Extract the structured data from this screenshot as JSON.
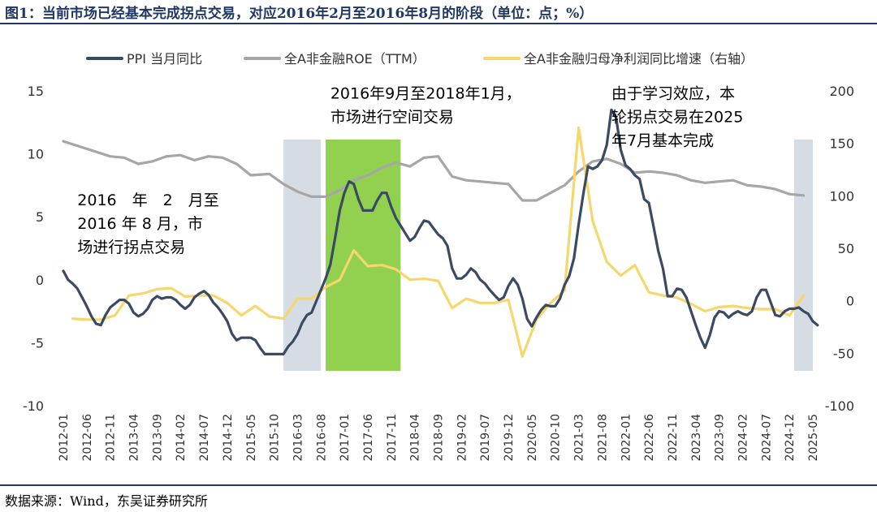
{
  "figure": {
    "title": "图1：当前市场已经基本完成拐点交易，对应2016年2月至2016年8月的阶段（单位：点；%）",
    "source": "数据来源：Wind，东吴证券研究所"
  },
  "chart_data": {
    "type": "line",
    "legend_position": "top",
    "x_dates": [
      "2012-01",
      "2012-06",
      "2012-11",
      "2013-04",
      "2013-09",
      "2014-02",
      "2014-07",
      "2014-12",
      "2015-05",
      "2015-10",
      "2016-03",
      "2016-08",
      "2017-01",
      "2017-06",
      "2017-11",
      "2018-04",
      "2018-09",
      "2019-02",
      "2019-07",
      "2019-12",
      "2020-05",
      "2020-10",
      "2021-03",
      "2021-08",
      "2022-01",
      "2022-06",
      "2022-11",
      "2023-04",
      "2023-09",
      "2024-02",
      "2024-07",
      "2024-12",
      "2025-05"
    ],
    "x_start": "2012-01",
    "x_end": "2025-05",
    "y_left": {
      "min": -10,
      "max": 15,
      "ticks": [
        15,
        10,
        5,
        0,
        -5,
        -10
      ]
    },
    "y_right": {
      "min": -100,
      "max": 200,
      "ticks": [
        200,
        150,
        100,
        50,
        0,
        -50,
        -100
      ]
    },
    "grid": false,
    "colors": {
      "ppi": "#3b4a63",
      "roe": "#a6a6a6",
      "profit": "#f5d76e",
      "green_band": "#92d050",
      "grey_band": "#d6dce4"
    },
    "bands": [
      {
        "from": "2015-12",
        "to": "2016-08",
        "color_key": "grey_band"
      },
      {
        "from": "2016-09",
        "to": "2018-01",
        "color_key": "green_band"
      },
      {
        "from": "2025-01",
        "to": "2025-05",
        "color_key": "grey_band"
      }
    ],
    "annotations": [
      {
        "lines": [
          "2016年9月至2018年1月，",
          "市场进行空间交易"
        ],
        "anchor": "2016-10",
        "y": 14.4
      },
      {
        "lines": [
          "2016　年　2　月至",
          "2016 年 8 月，市",
          "场进行拐点交易"
        ],
        "anchor": "2012-04",
        "y": 5.9
      },
      {
        "lines": [
          "由于学习效应，本",
          "轮拐点交易在2025",
          "年7月基本完成"
        ],
        "anchor": "2021-10",
        "y": 14.4
      }
    ],
    "series": [
      {
        "name": "PPI 当月同比",
        "axis": "left",
        "color_key": "ppi",
        "width": 3.2,
        "points": [
          [
            "2012-01",
            0.7
          ],
          [
            "2012-02",
            0.0
          ],
          [
            "2012-03",
            -0.3
          ],
          [
            "2012-04",
            -0.7
          ],
          [
            "2012-05",
            -1.4
          ],
          [
            "2012-06",
            -2.1
          ],
          [
            "2012-07",
            -2.9
          ],
          [
            "2012-08",
            -3.5
          ],
          [
            "2012-09",
            -3.6
          ],
          [
            "2012-10",
            -2.8
          ],
          [
            "2012-11",
            -2.2
          ],
          [
            "2012-12",
            -1.9
          ],
          [
            "2013-01",
            -1.6
          ],
          [
            "2013-02",
            -1.6
          ],
          [
            "2013-03",
            -1.9
          ],
          [
            "2013-04",
            -2.6
          ],
          [
            "2013-05",
            -2.9
          ],
          [
            "2013-06",
            -2.7
          ],
          [
            "2013-07",
            -2.3
          ],
          [
            "2013-08",
            -1.6
          ],
          [
            "2013-09",
            -1.3
          ],
          [
            "2013-10",
            -1.5
          ],
          [
            "2013-11",
            -1.4
          ],
          [
            "2013-12",
            -1.4
          ],
          [
            "2014-01",
            -1.6
          ],
          [
            "2014-02",
            -2.0
          ],
          [
            "2014-03",
            -2.3
          ],
          [
            "2014-04",
            -2.0
          ],
          [
            "2014-05",
            -1.4
          ],
          [
            "2014-06",
            -1.1
          ],
          [
            "2014-07",
            -0.9
          ],
          [
            "2014-08",
            -1.2
          ],
          [
            "2014-09",
            -1.8
          ],
          [
            "2014-10",
            -2.2
          ],
          [
            "2014-11",
            -2.7
          ],
          [
            "2014-12",
            -3.3
          ],
          [
            "2014-12",
            -3.3
          ],
          [
            "2015-01",
            -4.3
          ],
          [
            "2015-02",
            -4.8
          ],
          [
            "2015-03",
            -4.6
          ],
          [
            "2015-04",
            -4.6
          ],
          [
            "2015-05",
            -4.6
          ],
          [
            "2015-06",
            -4.8
          ],
          [
            "2015-07",
            -5.4
          ],
          [
            "2015-08",
            -5.9
          ],
          [
            "2015-09",
            -5.9
          ],
          [
            "2015-10",
            -5.9
          ],
          [
            "2015-11",
            -5.9
          ],
          [
            "2015-12",
            -5.9
          ],
          [
            "2016-01",
            -5.3
          ],
          [
            "2016-02",
            -4.9
          ],
          [
            "2016-03",
            -4.3
          ],
          [
            "2016-04",
            -3.4
          ],
          [
            "2016-05",
            -2.8
          ],
          [
            "2016-06",
            -2.6
          ],
          [
            "2016-07",
            -1.7
          ],
          [
            "2016-08",
            -0.8
          ],
          [
            "2016-09",
            0.1
          ],
          [
            "2016-10",
            1.2
          ],
          [
            "2016-11",
            3.3
          ],
          [
            "2016-12",
            5.5
          ],
          [
            "2017-01",
            6.9
          ],
          [
            "2017-02",
            7.8
          ],
          [
            "2017-03",
            7.6
          ],
          [
            "2017-04",
            6.4
          ],
          [
            "2017-05",
            5.5
          ],
          [
            "2017-06",
            5.5
          ],
          [
            "2017-07",
            5.5
          ],
          [
            "2017-08",
            6.3
          ],
          [
            "2017-09",
            6.9
          ],
          [
            "2017-10",
            6.9
          ],
          [
            "2017-11",
            5.8
          ],
          [
            "2017-12",
            4.9
          ],
          [
            "2018-01",
            4.3
          ],
          [
            "2018-02",
            3.7
          ],
          [
            "2018-03",
            3.1
          ],
          [
            "2018-04",
            3.4
          ],
          [
            "2018-05",
            4.1
          ],
          [
            "2018-06",
            4.7
          ],
          [
            "2018-07",
            4.6
          ],
          [
            "2018-08",
            4.1
          ],
          [
            "2018-09",
            3.6
          ],
          [
            "2018-10",
            3.3
          ],
          [
            "2018-11",
            2.7
          ],
          [
            "2018-12",
            0.9
          ],
          [
            "2019-01",
            0.1
          ],
          [
            "2019-02",
            0.1
          ],
          [
            "2019-03",
            0.4
          ],
          [
            "2019-04",
            0.9
          ],
          [
            "2019-05",
            0.6
          ],
          [
            "2019-06",
            0.0
          ],
          [
            "2019-07",
            -0.3
          ],
          [
            "2019-08",
            -0.8
          ],
          [
            "2019-09",
            -1.2
          ],
          [
            "2019-10",
            -1.6
          ],
          [
            "2019-11",
            -1.4
          ],
          [
            "2019-12",
            -0.5
          ],
          [
            "2020-01",
            0.1
          ],
          [
            "2020-02",
            -0.4
          ],
          [
            "2020-03",
            -1.5
          ],
          [
            "2020-04",
            -3.1
          ],
          [
            "2020-05",
            -3.7
          ],
          [
            "2020-06",
            -3.0
          ],
          [
            "2020-07",
            -2.4
          ],
          [
            "2020-08",
            -2.0
          ],
          [
            "2020-09",
            -2.1
          ],
          [
            "2020-10",
            -2.1
          ],
          [
            "2020-11",
            -1.5
          ],
          [
            "2020-12",
            -0.4
          ],
          [
            "2021-01",
            0.3
          ],
          [
            "2021-02",
            1.7
          ],
          [
            "2021-03",
            4.4
          ],
          [
            "2021-04",
            6.8
          ],
          [
            "2021-05",
            9.0
          ],
          [
            "2021-06",
            8.8
          ],
          [
            "2021-07",
            9.0
          ],
          [
            "2021-08",
            9.5
          ],
          [
            "2021-09",
            10.7
          ],
          [
            "2021-10",
            13.5
          ],
          [
            "2021-11",
            12.9
          ],
          [
            "2021-12",
            10.3
          ],
          [
            "2022-01",
            9.1
          ],
          [
            "2022-02",
            8.8
          ],
          [
            "2022-03",
            8.3
          ],
          [
            "2022-04",
            8.0
          ],
          [
            "2022-05",
            6.4
          ],
          [
            "2022-06",
            6.1
          ],
          [
            "2022-07",
            4.2
          ],
          [
            "2022-08",
            2.3
          ],
          [
            "2022-09",
            0.9
          ],
          [
            "2022-10",
            -1.3
          ],
          [
            "2022-11",
            -1.3
          ],
          [
            "2022-12",
            -0.7
          ],
          [
            "2023-01",
            -0.8
          ],
          [
            "2023-02",
            -1.4
          ],
          [
            "2023-03",
            -2.5
          ],
          [
            "2023-04",
            -3.6
          ],
          [
            "2023-05",
            -4.6
          ],
          [
            "2023-06",
            -5.4
          ],
          [
            "2023-07",
            -4.4
          ],
          [
            "2023-08",
            -3.0
          ],
          [
            "2023-09",
            -2.5
          ],
          [
            "2023-10",
            -2.6
          ],
          [
            "2023-11",
            -3.0
          ],
          [
            "2023-12",
            -2.7
          ],
          [
            "2024-01",
            -2.5
          ],
          [
            "2024-02",
            -2.7
          ],
          [
            "2024-03",
            -2.8
          ],
          [
            "2024-04",
            -2.5
          ],
          [
            "2024-05",
            -1.4
          ],
          [
            "2024-06",
            -0.8
          ],
          [
            "2024-07",
            -0.8
          ],
          [
            "2024-08",
            -1.8
          ],
          [
            "2024-09",
            -2.8
          ],
          [
            "2024-10",
            -2.9
          ],
          [
            "2024-11",
            -2.5
          ],
          [
            "2024-12",
            -2.3
          ],
          [
            "2025-01",
            -2.3
          ],
          [
            "2025-02",
            -2.2
          ],
          [
            "2025-03",
            -2.5
          ],
          [
            "2025-04",
            -2.7
          ],
          [
            "2025-05",
            -3.3
          ],
          [
            "2025-06",
            -3.6
          ]
        ]
      },
      {
        "name": "全A非金融ROE（TTM）",
        "axis": "left",
        "color_key": "roe",
        "width": 3.2,
        "points": [
          [
            "2012-01",
            11.0
          ],
          [
            "2012-06",
            10.4
          ],
          [
            "2012-11",
            9.8
          ],
          [
            "2013-02",
            9.7
          ],
          [
            "2013-05",
            9.2
          ],
          [
            "2013-08",
            9.4
          ],
          [
            "2013-11",
            9.8
          ],
          [
            "2014-02",
            9.9
          ],
          [
            "2014-05",
            9.5
          ],
          [
            "2014-08",
            9.8
          ],
          [
            "2014-11",
            9.7
          ],
          [
            "2015-02",
            9.2
          ],
          [
            "2015-05",
            8.3
          ],
          [
            "2015-09",
            8.4
          ],
          [
            "2015-12",
            7.6
          ],
          [
            "2016-03",
            7.0
          ],
          [
            "2016-06",
            6.6
          ],
          [
            "2016-09",
            6.6
          ],
          [
            "2016-12",
            7.1
          ],
          [
            "2017-03",
            7.9
          ],
          [
            "2017-06",
            8.3
          ],
          [
            "2017-09",
            8.9
          ],
          [
            "2017-12",
            9.3
          ],
          [
            "2018-03",
            9.0
          ],
          [
            "2018-06",
            9.7
          ],
          [
            "2018-09",
            9.8
          ],
          [
            "2018-12",
            8.2
          ],
          [
            "2019-03",
            7.9
          ],
          [
            "2019-06",
            7.8
          ],
          [
            "2019-09",
            7.7
          ],
          [
            "2019-12",
            7.6
          ],
          [
            "2020-03",
            6.3
          ],
          [
            "2020-06",
            6.3
          ],
          [
            "2020-09",
            6.9
          ],
          [
            "2020-12",
            7.5
          ],
          [
            "2021-03",
            8.6
          ],
          [
            "2021-06",
            9.4
          ],
          [
            "2021-09",
            9.6
          ],
          [
            "2021-12",
            9.2
          ],
          [
            "2022-03",
            8.5
          ],
          [
            "2022-06",
            8.6
          ],
          [
            "2022-09",
            8.5
          ],
          [
            "2022-12",
            8.3
          ],
          [
            "2023-03",
            7.9
          ],
          [
            "2023-06",
            7.7
          ],
          [
            "2023-09",
            7.8
          ],
          [
            "2023-12",
            7.9
          ],
          [
            "2024-03",
            7.5
          ],
          [
            "2024-06",
            7.4
          ],
          [
            "2024-09",
            7.2
          ],
          [
            "2024-12",
            6.8
          ],
          [
            "2025-03",
            6.7
          ]
        ]
      },
      {
        "name": "全A非金融归母净利润同比增速（右轴）",
        "axis": "right",
        "color_key": "profit",
        "width": 3.2,
        "points": [
          [
            "2012-03",
            -17
          ],
          [
            "2012-06",
            -18
          ],
          [
            "2012-09",
            -18
          ],
          [
            "2012-12",
            -14
          ],
          [
            "2013-03",
            5
          ],
          [
            "2013-06",
            7
          ],
          [
            "2013-09",
            11
          ],
          [
            "2013-12",
            12
          ],
          [
            "2014-03",
            4
          ],
          [
            "2014-06",
            5
          ],
          [
            "2014-09",
            5
          ],
          [
            "2014-12",
            -2
          ],
          [
            "2015-03",
            -14
          ],
          [
            "2015-06",
            -5
          ],
          [
            "2015-09",
            -15
          ],
          [
            "2015-12",
            -17
          ],
          [
            "2016-03",
            2
          ],
          [
            "2016-06",
            2
          ],
          [
            "2016-09",
            13
          ],
          [
            "2016-12",
            20
          ],
          [
            "2017-03",
            48
          ],
          [
            "2017-06",
            33
          ],
          [
            "2017-09",
            34
          ],
          [
            "2017-12",
            30
          ],
          [
            "2018-03",
            20
          ],
          [
            "2018-06",
            21
          ],
          [
            "2018-09",
            19
          ],
          [
            "2018-12",
            -7
          ],
          [
            "2019-03",
            2
          ],
          [
            "2019-06",
            -2
          ],
          [
            "2019-09",
            -2
          ],
          [
            "2019-12",
            1
          ],
          [
            "2020-03",
            -53
          ],
          [
            "2020-06",
            -18
          ],
          [
            "2020-09",
            -2
          ],
          [
            "2020-12",
            10
          ],
          [
            "2021-03",
            165
          ],
          [
            "2021-06",
            76
          ],
          [
            "2021-09",
            37
          ],
          [
            "2021-12",
            24
          ],
          [
            "2022-03",
            34
          ],
          [
            "2022-06",
            8
          ],
          [
            "2022-09",
            5
          ],
          [
            "2022-12",
            3
          ],
          [
            "2023-03",
            -3
          ],
          [
            "2023-06",
            -10
          ],
          [
            "2023-09",
            -6
          ],
          [
            "2023-12",
            -5
          ],
          [
            "2024-03",
            -7
          ],
          [
            "2024-06",
            -8
          ],
          [
            "2024-09",
            -8
          ],
          [
            "2024-12",
            -14
          ],
          [
            "2025-03",
            5
          ]
        ]
      }
    ]
  }
}
